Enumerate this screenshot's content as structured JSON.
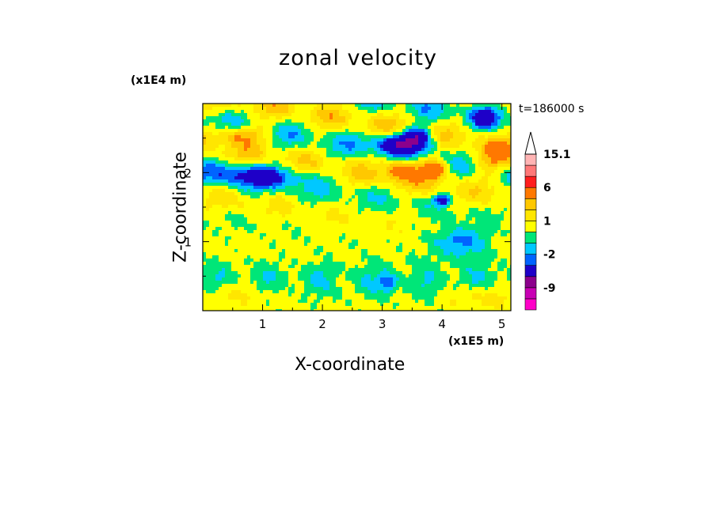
{
  "chart_data": {
    "type": "heatmap",
    "title": "zonal velocity",
    "xlabel": "X-coordinate",
    "ylabel": "Z-coordinate",
    "x_unit": "(x1E5 m)",
    "y_unit": "(x1E4 m)",
    "time_label": "t=186000 s",
    "xlim": [
      0,
      5.15
    ],
    "ylim": [
      0,
      3.0
    ],
    "x_ticks": [
      1,
      2,
      3,
      4,
      5
    ],
    "y_ticks": [
      1,
      2
    ],
    "colorbar": {
      "labels": [
        "15.1",
        "6",
        "1",
        "-2",
        "-9"
      ],
      "levels": [
        -15,
        -12,
        -9,
        -6,
        -3,
        -2,
        -1,
        0,
        1,
        2,
        3,
        6,
        9,
        12,
        15.1
      ],
      "colors": [
        "#ff00c8",
        "#c800b4",
        "#8c008c",
        "#1e00c8",
        "#0064ff",
        "#00c8ff",
        "#00e678",
        "#ffff00",
        "#ffe600",
        "#ffc800",
        "#ff7800",
        "#ff1e1e",
        "#ff7878",
        "#ffb4b4"
      ]
    },
    "field_features": [
      {
        "name": "background",
        "v": 0.3
      },
      {
        "name": "upper westward jet core",
        "x": 3.35,
        "z": 2.42,
        "v": -4.5
      },
      {
        "name": "upper jet minimum",
        "x": 3.55,
        "z": 2.47,
        "v": -7
      },
      {
        "name": "eastward maximum near top",
        "x": 3.85,
        "z": 2.05,
        "v": 4.5
      },
      {
        "name": "westward lobe",
        "x": 4.0,
        "z": 1.6,
        "v": -4.5
      }
    ]
  }
}
